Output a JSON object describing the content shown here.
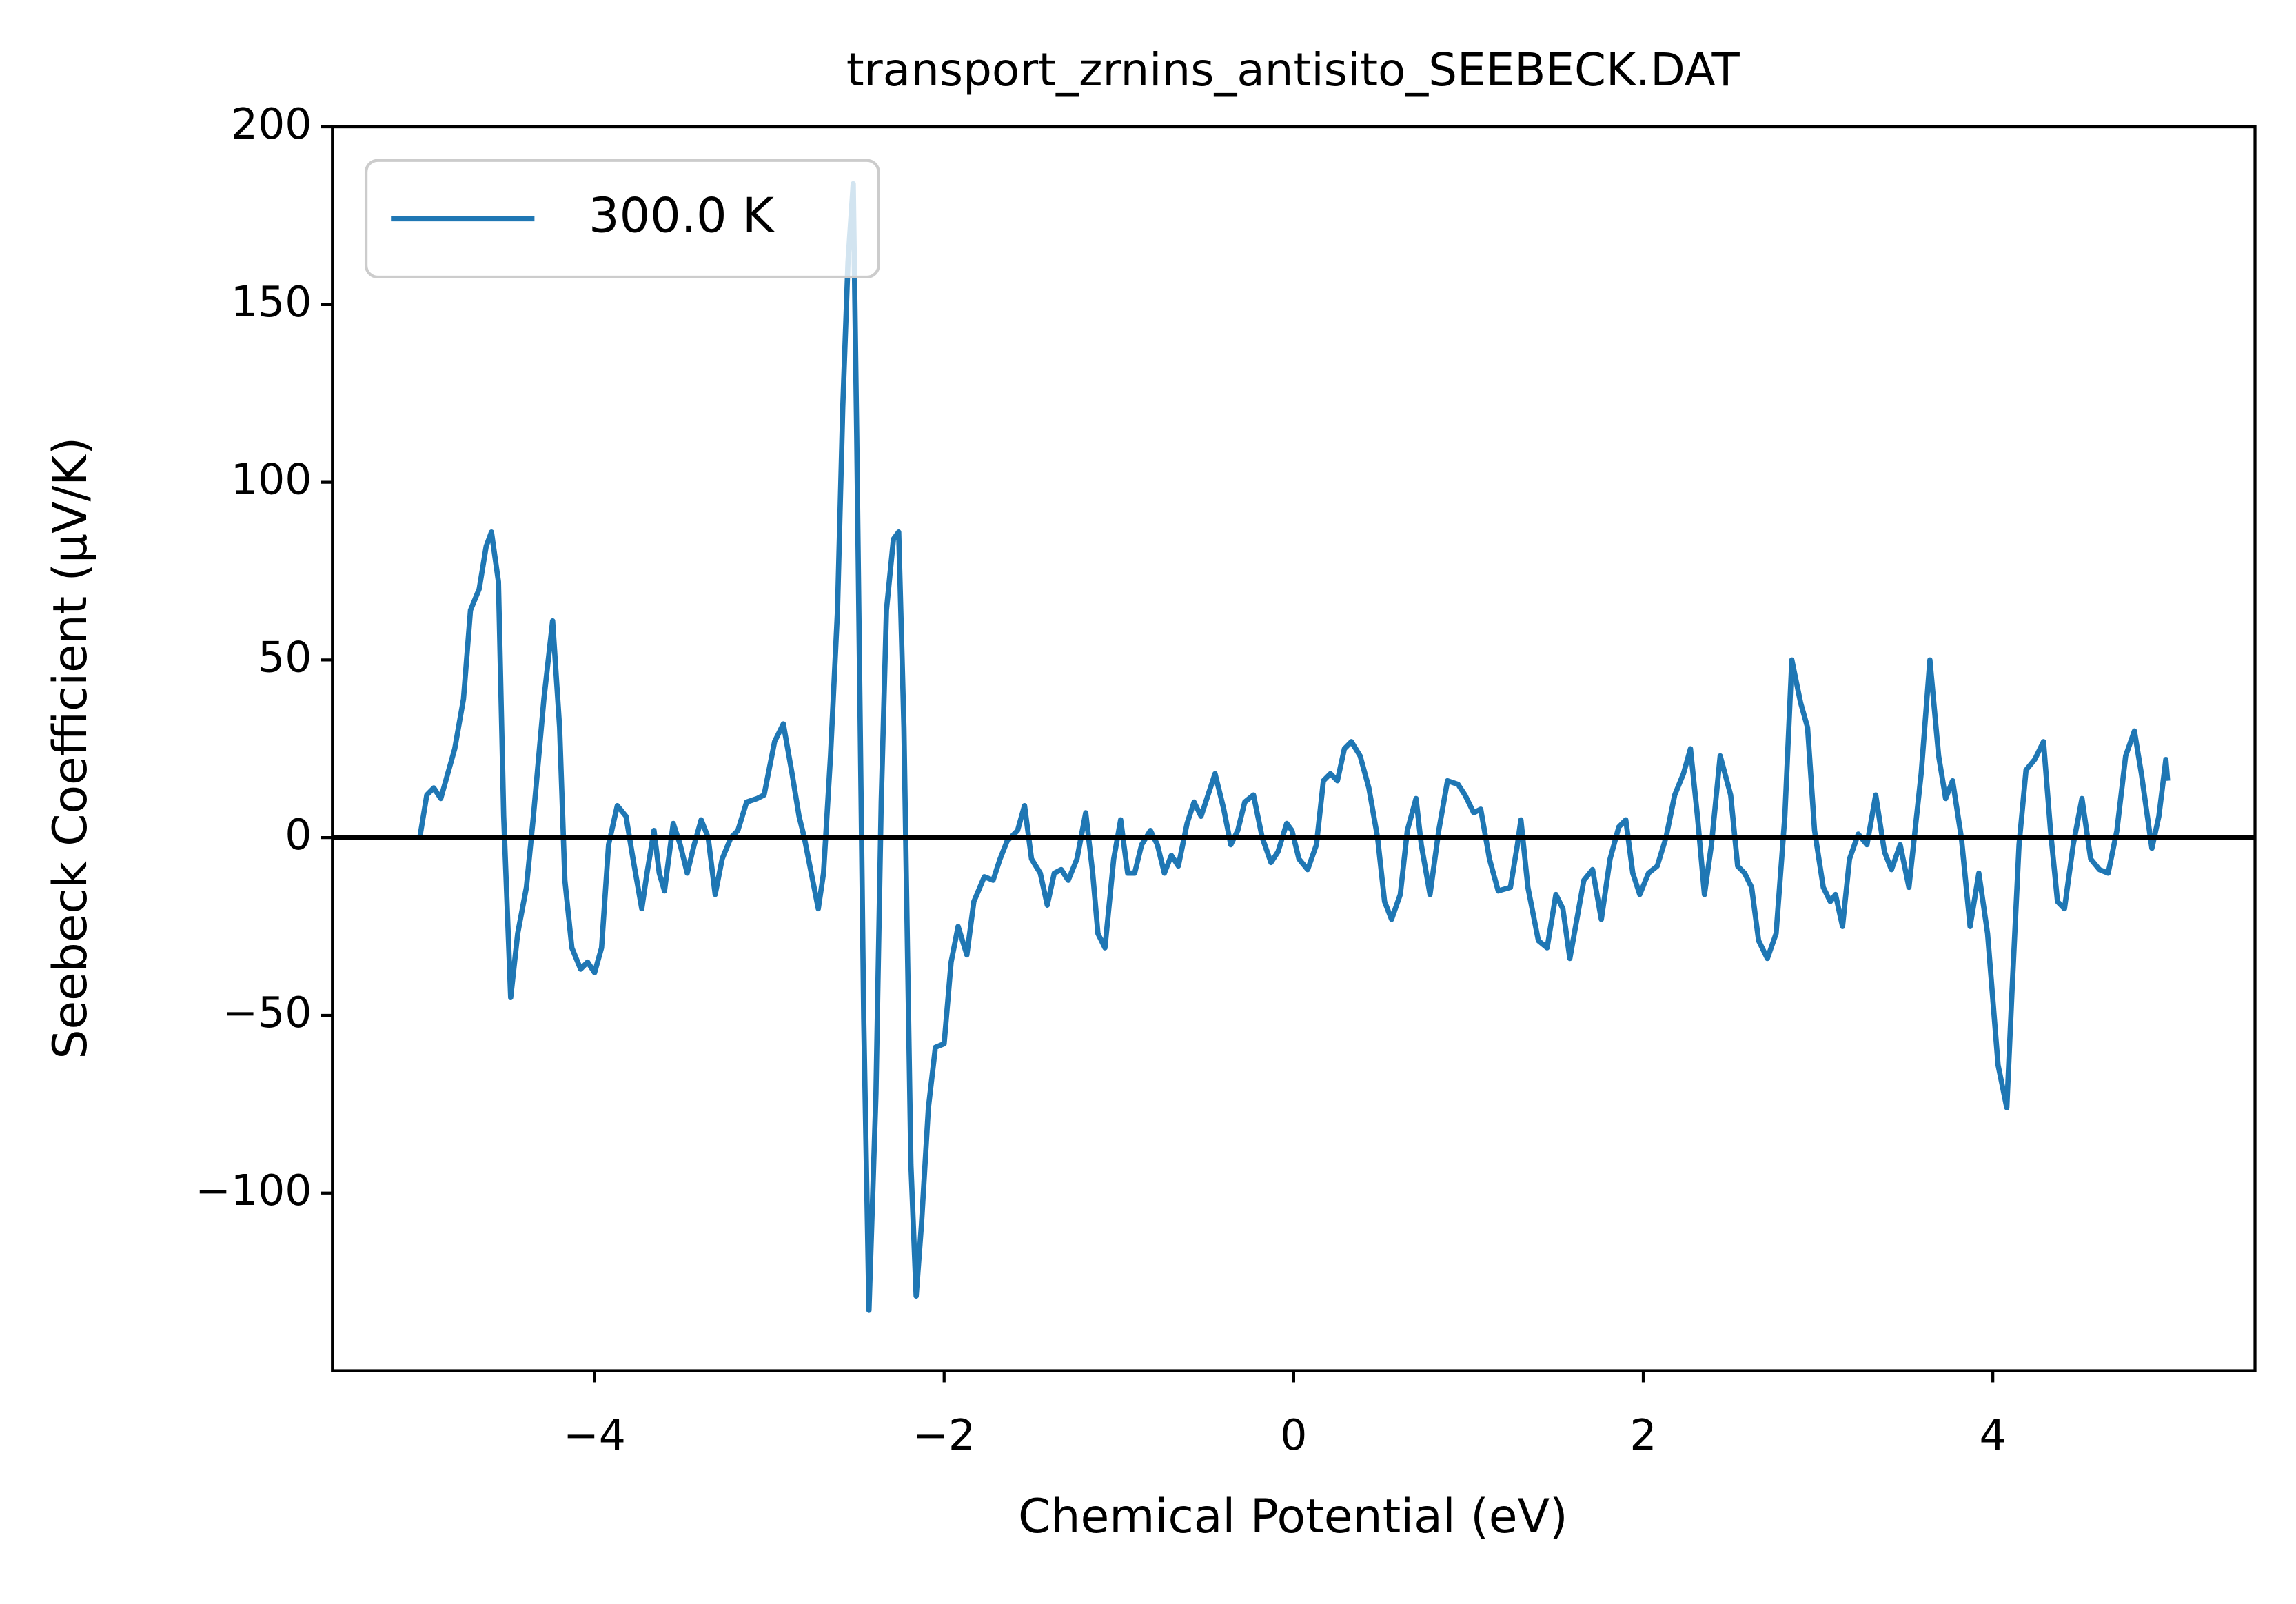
{
  "chart_data": {
    "type": "line",
    "title": "transport_zrnins_antisito_SEEBECK.DAT",
    "xlabel": "Chemical Potential (eV)",
    "ylabel": "Seebeck Coefficient (μV/K)",
    "x": [
      -5.0,
      -4.96,
      -4.92,
      -4.88,
      -4.84,
      -4.8,
      -4.75,
      -4.71,
      -4.66,
      -4.62,
      -4.59,
      -4.55,
      -4.52,
      -4.48,
      -4.44,
      -4.39,
      -4.35,
      -4.29,
      -4.24,
      -4.2,
      -4.17,
      -4.13,
      -4.08,
      -4.04,
      -4.0,
      -3.96,
      -3.92,
      -3.87,
      -3.82,
      -3.78,
      -3.73,
      -3.7,
      -3.66,
      -3.63,
      -3.6,
      -3.55,
      -3.51,
      -3.47,
      -3.43,
      -3.39,
      -3.35,
      -3.31,
      -3.27,
      -3.22,
      -3.18,
      -3.13,
      -3.07,
      -3.03,
      -2.97,
      -2.92,
      -2.87,
      -2.83,
      -2.8,
      -2.76,
      -2.72,
      -2.69,
      -2.65,
      -2.61,
      -2.58,
      -2.55,
      -2.52,
      -2.5,
      -2.46,
      -2.43,
      -2.39,
      -2.36,
      -2.33,
      -2.29,
      -2.26,
      -2.23,
      -2.19,
      -2.16,
      -2.13,
      -2.09,
      -2.05,
      -2.0,
      -1.96,
      -1.92,
      -1.87,
      -1.83,
      -1.77,
      -1.72,
      -1.68,
      -1.64,
      -1.58,
      -1.54,
      -1.5,
      -1.45,
      -1.41,
      -1.37,
      -1.33,
      -1.29,
      -1.24,
      -1.19,
      -1.15,
      -1.12,
      -1.08,
      -1.03,
      -0.99,
      -0.95,
      -0.91,
      -0.87,
      -0.82,
      -0.78,
      -0.74,
      -0.7,
      -0.66,
      -0.61,
      -0.57,
      -0.53,
      -0.49,
      -0.45,
      -0.4,
      -0.36,
      -0.32,
      -0.28,
      -0.23,
      -0.18,
      -0.13,
      -0.09,
      -0.04,
      -0.01,
      0.03,
      0.08,
      0.13,
      0.17,
      0.21,
      0.25,
      0.29,
      0.33,
      0.38,
      0.43,
      0.48,
      0.52,
      0.56,
      0.61,
      0.65,
      0.7,
      0.73,
      0.78,
      0.83,
      0.88,
      0.94,
      0.98,
      1.03,
      1.07,
      1.12,
      1.17,
      1.24,
      1.28,
      1.3,
      1.34,
      1.4,
      1.45,
      1.5,
      1.54,
      1.58,
      1.62,
      1.66,
      1.71,
      1.76,
      1.81,
      1.86,
      1.9,
      1.94,
      1.98,
      2.03,
      2.08,
      2.13,
      2.18,
      2.23,
      2.27,
      2.31,
      2.35,
      2.39,
      2.44,
      2.5,
      2.54,
      2.58,
      2.62,
      2.66,
      2.71,
      2.76,
      2.81,
      2.85,
      2.9,
      2.94,
      2.98,
      3.03,
      3.07,
      3.1,
      3.14,
      3.18,
      3.23,
      3.28,
      3.33,
      3.38,
      3.42,
      3.47,
      3.52,
      3.59,
      3.64,
      3.69,
      3.73,
      3.77,
      3.82,
      3.87,
      3.92,
      3.97,
      4.03,
      4.08,
      4.11,
      4.15,
      4.19,
      4.24,
      4.29,
      4.33,
      4.37,
      4.41,
      4.46,
      4.51,
      4.56,
      4.61,
      4.66,
      4.71,
      4.76,
      4.81,
      4.85,
      4.91,
      4.95,
      4.99,
      5.0
    ],
    "series": [
      {
        "name": "300.0 K",
        "color": "#1f77b4",
        "values": [
          0,
          12,
          14,
          11,
          18,
          25,
          39,
          64,
          70,
          82,
          86,
          72,
          6,
          -45,
          -27,
          -14,
          6,
          39,
          61,
          31,
          -12,
          -31,
          -37,
          -35,
          -38,
          -31,
          -2,
          9,
          6,
          -6,
          -20,
          -10,
          2,
          -10,
          -15,
          4,
          -2,
          -10,
          -2,
          5,
          0,
          -16,
          -6,
          0,
          2,
          10,
          11,
          12,
          27,
          32,
          18,
          6,
          0,
          -10,
          -20,
          -10,
          23,
          64,
          121,
          162,
          184,
          113,
          -51,
          -133,
          -72,
          10,
          64,
          84,
          86,
          31,
          -92,
          -129,
          -109,
          -76,
          -59,
          -58,
          -35,
          -25,
          -33,
          -18,
          -11,
          -12,
          -6,
          -1,
          2,
          9,
          -6,
          -10,
          -19,
          -10,
          -9,
          -12,
          -6,
          7,
          -10,
          -27,
          -31,
          -6,
          5,
          -10,
          -10,
          -2,
          2,
          -2,
          -10,
          -5,
          -8,
          4,
          10,
          6,
          12,
          18,
          8,
          -2,
          2,
          10,
          12,
          0,
          -7,
          -4,
          4,
          2,
          -6,
          -9,
          -2,
          16,
          18,
          16,
          25,
          27,
          23,
          14,
          0,
          -18,
          -23,
          -16,
          2,
          11,
          -2,
          -16,
          2,
          16,
          15,
          12,
          7,
          8,
          -6,
          -15,
          -14,
          -2,
          5,
          -14,
          -29,
          -31,
          -16,
          -20,
          -34,
          -23,
          -12,
          -9,
          -23,
          -6,
          3,
          5,
          -10,
          -16,
          -10,
          -8,
          0,
          12,
          18,
          25,
          6,
          -16,
          -2,
          23,
          12,
          -8,
          -10,
          -14,
          -29,
          -34,
          -27,
          6,
          50,
          38,
          31,
          2,
          -14,
          -18,
          -16,
          -25,
          -6,
          1,
          -2,
          12,
          -4,
          -9,
          -2,
          -14,
          18,
          50,
          23,
          11,
          16,
          0,
          -25,
          -10,
          -27,
          -64,
          -76,
          -43,
          -2,
          19,
          22,
          27,
          2,
          -18,
          -20,
          -2,
          11,
          -6,
          -9,
          -10,
          2,
          23,
          30,
          18,
          -3,
          6,
          22,
          16
        ]
      }
    ],
    "hlines": [
      0
    ],
    "xlim": [
      -5.5,
      5.5
    ],
    "ylim": [
      -150,
      200
    ],
    "xticks": [
      {
        "value": -4,
        "label": "−4"
      },
      {
        "value": -2,
        "label": "−2"
      },
      0,
      2,
      4
    ],
    "yticks": [
      {
        "value": -100,
        "label": "−100"
      },
      {
        "value": -50,
        "label": "−50"
      },
      0,
      50,
      100,
      150,
      200
    ],
    "legend": "upper left",
    "grid": false
  }
}
